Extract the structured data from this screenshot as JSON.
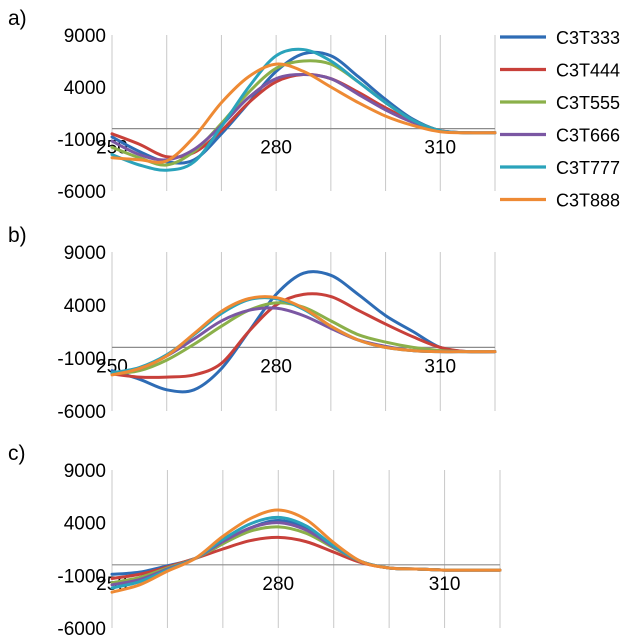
{
  "chart_data": [
    {
      "type": "line",
      "panel_label": "a)",
      "title": "",
      "xlabel": "",
      "ylabel": "",
      "xlim": [
        250,
        320
      ],
      "ylim": [
        -6000,
        9000
      ],
      "x_ticks": [
        250,
        280,
        310
      ],
      "y_ticks": [
        9000,
        4000,
        -1000,
        -6000
      ],
      "grid": true,
      "legend": "right",
      "series": [
        {
          "name": "C3T333",
          "color": "#2e6cb5",
          "x": [
            250,
            255,
            260,
            265,
            270,
            275,
            280,
            285,
            290,
            295,
            300,
            305,
            310,
            315,
            320
          ],
          "y": [
            -800,
            -2200,
            -3200,
            -3000,
            -500,
            2500,
            5500,
            7200,
            7000,
            5000,
            2800,
            900,
            -200,
            -400,
            -400
          ]
        },
        {
          "name": "C3T444",
          "color": "#c8403a",
          "x": [
            250,
            255,
            260,
            265,
            270,
            275,
            280,
            285,
            290,
            295,
            300,
            305,
            310,
            315,
            320
          ],
          "y": [
            -500,
            -1500,
            -2700,
            -2300,
            -200,
            2500,
            4500,
            5200,
            4800,
            3500,
            2000,
            700,
            -200,
            -400,
            -400
          ]
        },
        {
          "name": "C3T555",
          "color": "#8bb04a",
          "x": [
            250,
            255,
            260,
            265,
            270,
            275,
            280,
            285,
            290,
            295,
            300,
            305,
            310,
            315,
            320
          ],
          "y": [
            -1800,
            -2800,
            -3500,
            -2200,
            500,
            3500,
            5800,
            6500,
            6200,
            4500,
            2500,
            800,
            -200,
            -400,
            -400
          ]
        },
        {
          "name": "C3T666",
          "color": "#7b57a3",
          "x": [
            250,
            255,
            260,
            265,
            270,
            275,
            280,
            285,
            290,
            295,
            300,
            305,
            310,
            315,
            320
          ],
          "y": [
            -1200,
            -2500,
            -3000,
            -2000,
            300,
            3000,
            4800,
            5200,
            4800,
            3300,
            1800,
            600,
            -200,
            -400,
            -400
          ]
        },
        {
          "name": "C3T777",
          "color": "#2aa3bb",
          "x": [
            250,
            255,
            260,
            265,
            270,
            275,
            280,
            285,
            290,
            295,
            300,
            305,
            310,
            315,
            320
          ],
          "y": [
            -2500,
            -3500,
            -4000,
            -3200,
            200,
            4000,
            7000,
            7600,
            6500,
            4500,
            2500,
            800,
            -200,
            -400,
            -400
          ]
        },
        {
          "name": "C3T888",
          "color": "#ee8a34",
          "x": [
            250,
            255,
            260,
            265,
            270,
            275,
            280,
            285,
            290,
            295,
            300,
            305,
            310,
            315,
            320
          ],
          "y": [
            -2800,
            -3000,
            -3100,
            -800,
            2500,
            5000,
            6200,
            5500,
            4000,
            2500,
            1200,
            300,
            -300,
            -400,
            -400
          ]
        }
      ]
    },
    {
      "type": "line",
      "panel_label": "b)",
      "title": "",
      "xlabel": "",
      "ylabel": "",
      "xlim": [
        250,
        320
      ],
      "ylim": [
        -6000,
        9000
      ],
      "x_ticks": [
        250,
        280,
        310
      ],
      "y_ticks": [
        9000,
        4000,
        -1000,
        -6000
      ],
      "grid": true,
      "legend": "none",
      "series": [
        {
          "name": "C3T333",
          "color": "#2e6cb5",
          "x": [
            250,
            255,
            260,
            265,
            270,
            275,
            280,
            285,
            290,
            295,
            300,
            305,
            310,
            315,
            320
          ],
          "y": [
            -2200,
            -3000,
            -4000,
            -4000,
            -2000,
            1500,
            5000,
            7000,
            6800,
            5000,
            3000,
            1500,
            0,
            -400,
            -400
          ]
        },
        {
          "name": "C3T444",
          "color": "#c8403a",
          "x": [
            250,
            255,
            260,
            265,
            270,
            275,
            280,
            285,
            290,
            295,
            300,
            305,
            310,
            315,
            320
          ],
          "y": [
            -2500,
            -2800,
            -2800,
            -2600,
            -1500,
            1500,
            4000,
            5000,
            4800,
            3500,
            2200,
            1000,
            0,
            -400,
            -400
          ]
        },
        {
          "name": "C3T555",
          "color": "#8bb04a",
          "x": [
            250,
            255,
            260,
            265,
            270,
            275,
            280,
            285,
            290,
            295,
            300,
            305,
            310,
            315,
            320
          ],
          "y": [
            -2500,
            -2200,
            -1200,
            300,
            2000,
            3500,
            4200,
            3800,
            2500,
            1200,
            500,
            0,
            -300,
            -400,
            -400
          ]
        },
        {
          "name": "C3T666",
          "color": "#7b57a3",
          "x": [
            250,
            255,
            260,
            265,
            270,
            275,
            280,
            285,
            290,
            295,
            300,
            305,
            310,
            315,
            320
          ],
          "y": [
            -2500,
            -2000,
            -800,
            800,
            2500,
            3500,
            3700,
            3000,
            1800,
            700,
            100,
            -300,
            -400,
            -400,
            -400
          ]
        },
        {
          "name": "C3T777",
          "color": "#2aa3bb",
          "x": [
            250,
            255,
            260,
            265,
            270,
            275,
            280,
            285,
            290,
            295,
            300,
            305,
            310,
            315,
            320
          ],
          "y": [
            -2400,
            -1900,
            -700,
            1200,
            3200,
            4500,
            4600,
            3600,
            2000,
            700,
            0,
            -300,
            -400,
            -400,
            -400
          ]
        },
        {
          "name": "C3T888",
          "color": "#ee8a34",
          "x": [
            250,
            255,
            260,
            265,
            270,
            275,
            280,
            285,
            290,
            295,
            300,
            305,
            310,
            315,
            320
          ],
          "y": [
            -2600,
            -2000,
            -800,
            1300,
            3400,
            4600,
            4700,
            3700,
            2000,
            700,
            0,
            -300,
            -400,
            -400,
            -400
          ]
        }
      ]
    },
    {
      "type": "line",
      "panel_label": "c)",
      "title": "",
      "xlabel": "",
      "ylabel": "",
      "xlim": [
        250,
        320
      ],
      "ylim": [
        -6000,
        9000
      ],
      "x_ticks": [
        250,
        280,
        310
      ],
      "y_ticks": [
        9000,
        4000,
        -1000,
        -6000
      ],
      "grid": true,
      "legend": "none",
      "series": [
        {
          "name": "C3T333",
          "color": "#2e6cb5",
          "x": [
            250,
            255,
            260,
            265,
            270,
            275,
            280,
            285,
            290,
            295,
            300,
            305,
            310,
            315,
            320
          ],
          "y": [
            -900,
            -700,
            -100,
            600,
            2000,
            3500,
            4200,
            3500,
            1800,
            300,
            -300,
            -400,
            -500,
            -500,
            -500
          ]
        },
        {
          "name": "C3T444",
          "color": "#c8403a",
          "x": [
            250,
            255,
            260,
            265,
            270,
            275,
            280,
            285,
            290,
            295,
            300,
            305,
            310,
            315,
            320
          ],
          "y": [
            -1300,
            -900,
            -200,
            600,
            1500,
            2300,
            2600,
            2200,
            1200,
            200,
            -300,
            -400,
            -500,
            -500,
            -500
          ]
        },
        {
          "name": "C3T555",
          "color": "#8bb04a",
          "x": [
            250,
            255,
            260,
            265,
            270,
            275,
            280,
            285,
            290,
            295,
            300,
            305,
            310,
            315,
            320
          ],
          "y": [
            -1700,
            -1200,
            -300,
            600,
            2000,
            3200,
            3600,
            3000,
            1600,
            300,
            -300,
            -400,
            -500,
            -500,
            -500
          ]
        },
        {
          "name": "C3T666",
          "color": "#7b57a3",
          "x": [
            250,
            255,
            260,
            265,
            270,
            275,
            280,
            285,
            290,
            295,
            300,
            305,
            310,
            315,
            320
          ],
          "y": [
            -1900,
            -1400,
            -400,
            600,
            2200,
            3500,
            4000,
            3300,
            1700,
            300,
            -300,
            -400,
            -500,
            -500,
            -500
          ]
        },
        {
          "name": "C3T777",
          "color": "#2aa3bb",
          "x": [
            250,
            255,
            260,
            265,
            270,
            275,
            280,
            285,
            290,
            295,
            300,
            305,
            310,
            315,
            320
          ],
          "y": [
            -2200,
            -1600,
            -500,
            600,
            2400,
            3900,
            4500,
            3700,
            1800,
            300,
            -300,
            -400,
            -500,
            -500,
            -500
          ]
        },
        {
          "name": "C3T888",
          "color": "#ee8a34",
          "x": [
            250,
            255,
            260,
            265,
            270,
            275,
            280,
            285,
            290,
            295,
            300,
            305,
            310,
            315,
            320
          ],
          "y": [
            -2600,
            -1900,
            -600,
            600,
            2700,
            4400,
            5200,
            4300,
            2100,
            300,
            -300,
            -400,
            -500,
            -500,
            -500
          ]
        }
      ]
    }
  ]
}
